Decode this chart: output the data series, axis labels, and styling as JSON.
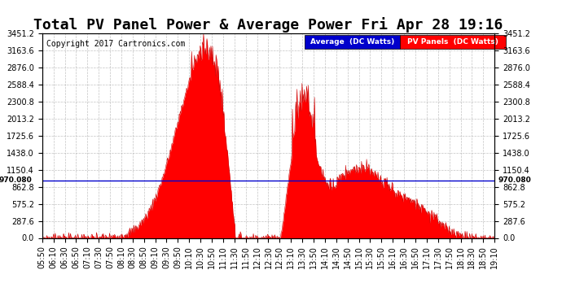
{
  "title": "Total PV Panel Power & Average Power Fri Apr 28 19:16",
  "copyright": "Copyright 2017 Cartronics.com",
  "avg_line_label": "970.080",
  "ymax": 3451.2,
  "ymin": 0.0,
  "ytick_interval": 287.6,
  "avg_line_y": 970.08,
  "avg_line_color": "#0000cc",
  "pv_fill_color": "#ff0000",
  "background_color": "#ffffff",
  "plot_bg_color": "#ffffff",
  "grid_color": "#aaaaaa",
  "legend_avg_color": "#0000cc",
  "legend_pv_color": "#ff0000",
  "legend_avg_label": "Average  (DC Watts)",
  "legend_pv_label": "PV Panels  (DC Watts)",
  "title_fontsize": 13,
  "copyright_fontsize": 7,
  "tick_fontsize": 7,
  "time_labels": [
    "05:50",
    "06:10",
    "06:30",
    "06:50",
    "07:10",
    "07:30",
    "07:50",
    "08:10",
    "08:30",
    "08:50",
    "09:10",
    "09:30",
    "09:50",
    "10:10",
    "10:30",
    "10:50",
    "11:10",
    "11:30",
    "11:50",
    "12:10",
    "12:30",
    "12:50",
    "13:10",
    "13:30",
    "13:50",
    "14:10",
    "14:30",
    "14:50",
    "15:10",
    "15:30",
    "15:50",
    "16:10",
    "16:30",
    "16:50",
    "17:10",
    "17:30",
    "17:50",
    "18:10",
    "18:30",
    "18:50",
    "19:10"
  ]
}
